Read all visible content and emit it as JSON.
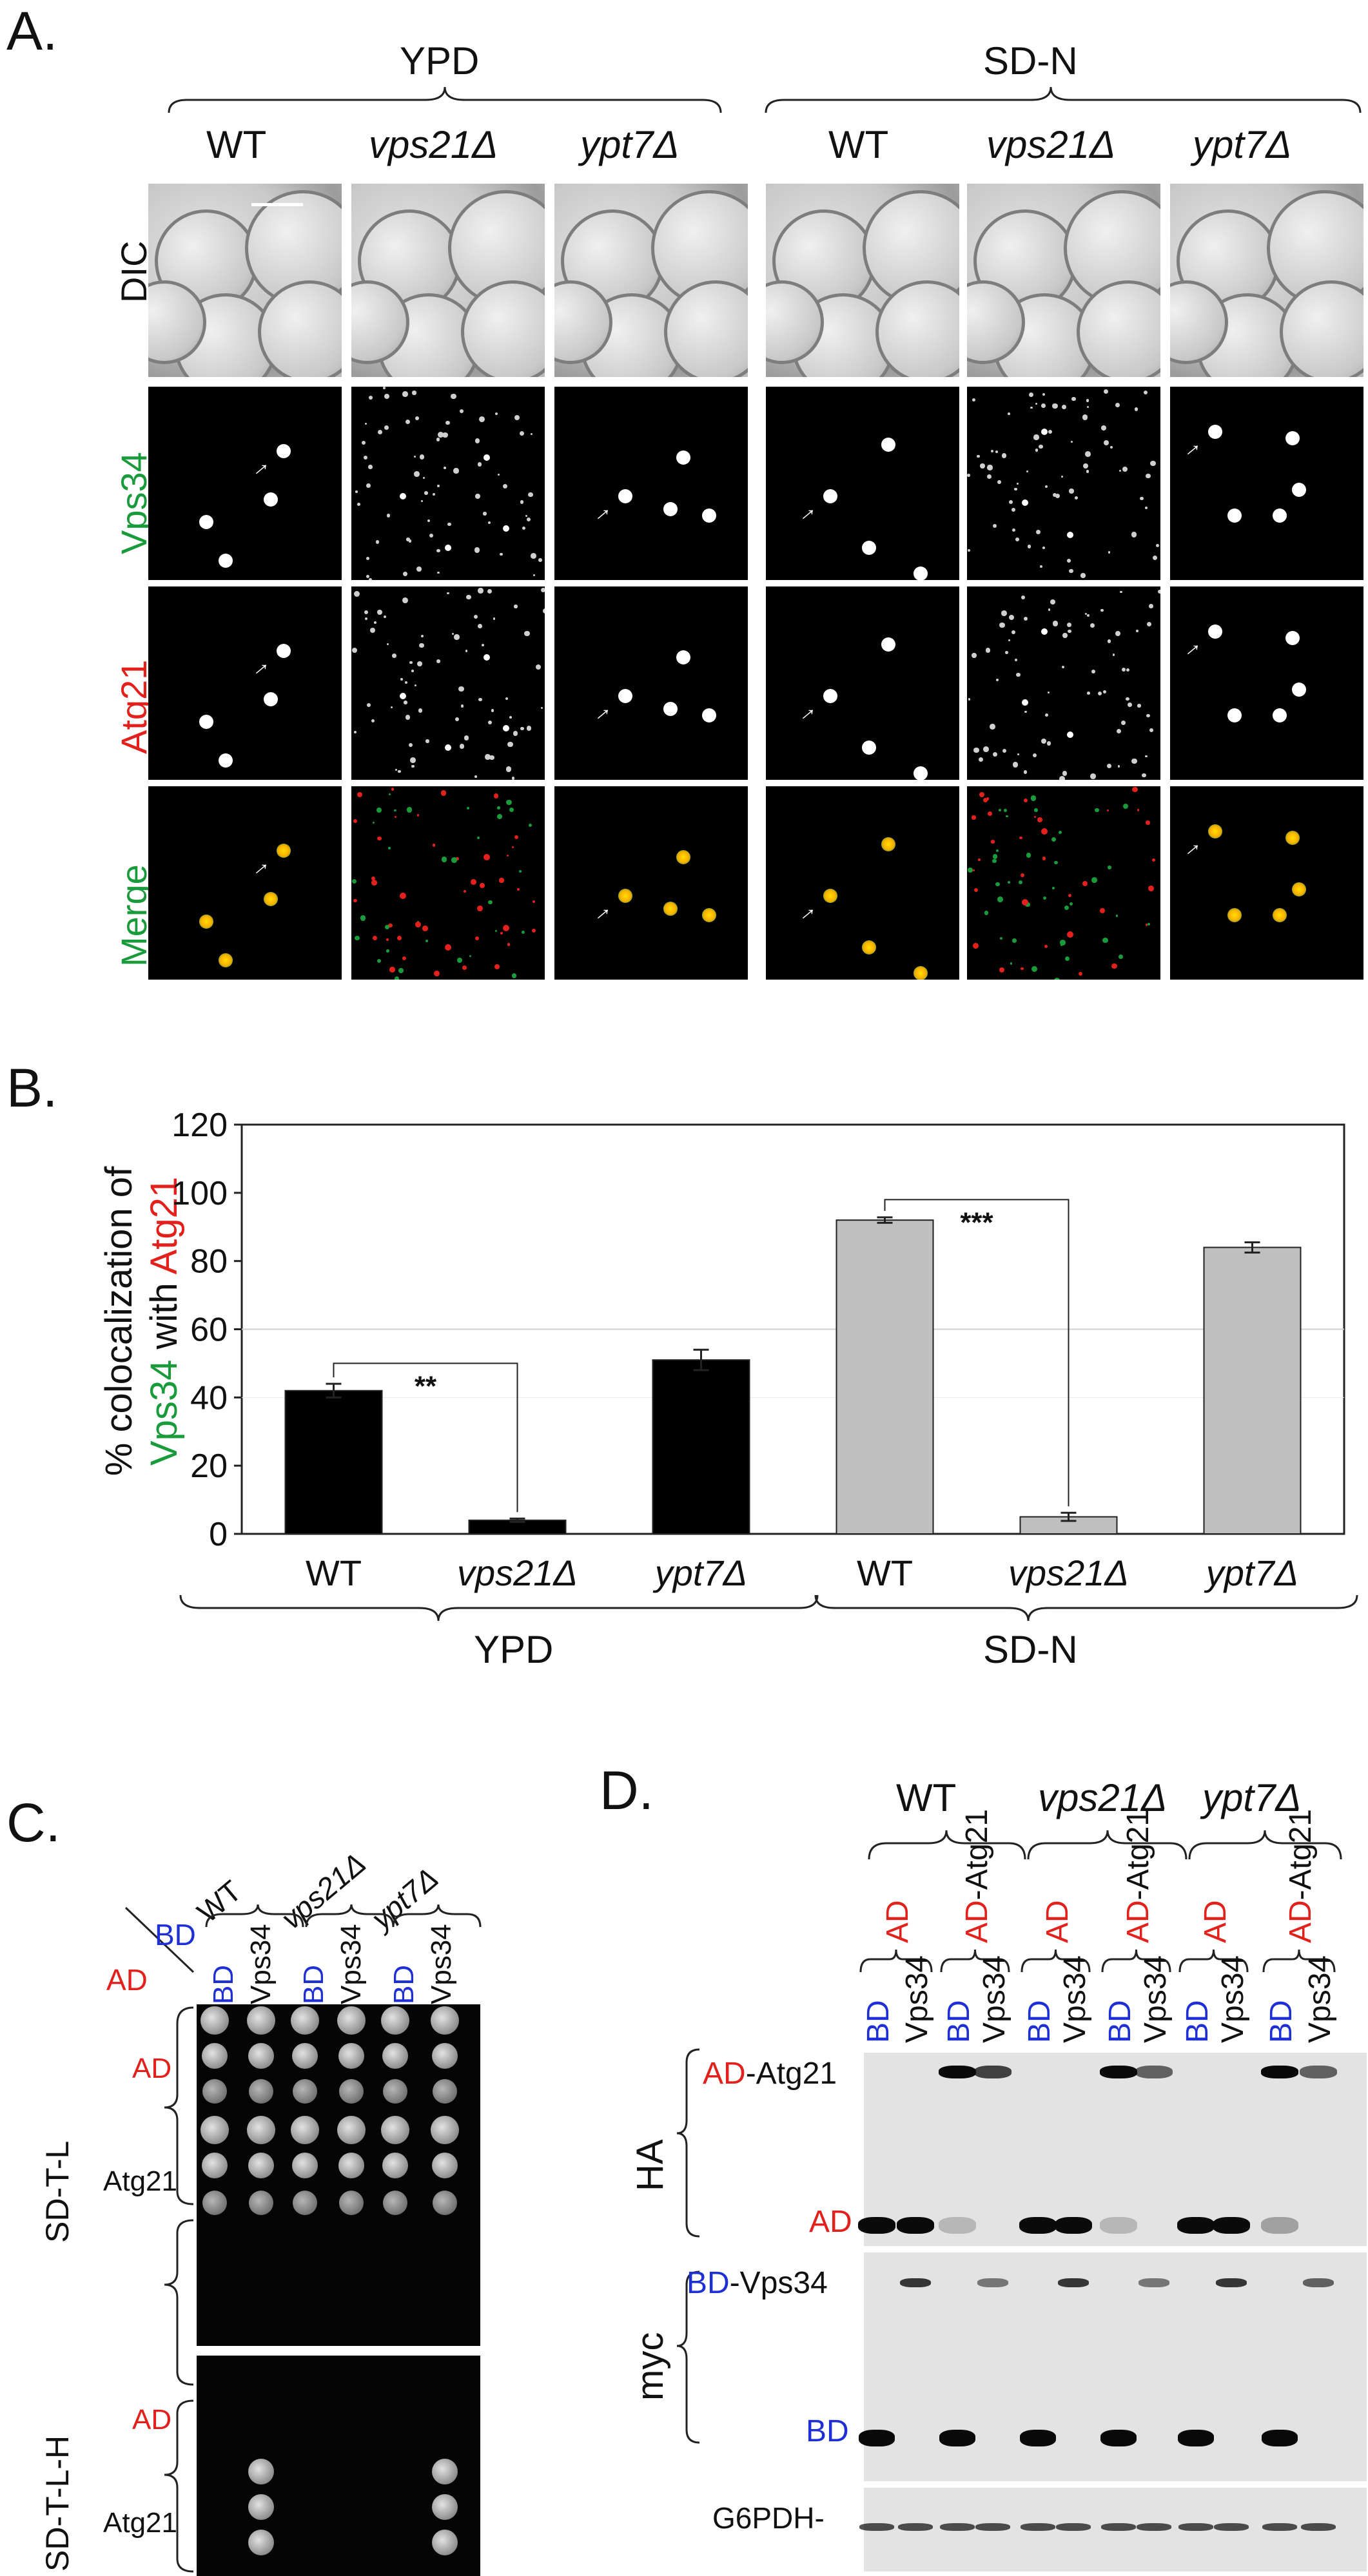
{
  "panelA": {
    "letter": "A.",
    "groups": [
      "YPD",
      "SD-N"
    ],
    "columns": [
      "WT",
      "vps21Δ",
      "ypt7Δ",
      "WT",
      "vps21Δ",
      "ypt7Δ"
    ],
    "rows": [
      "DIC",
      "Vps34",
      "Atg21",
      "Merge"
    ],
    "colors": {
      "green": "#1a9b3b",
      "red": "#e3211c",
      "blue": "#1f2fd6"
    }
  },
  "panelB": {
    "letter": "B.",
    "ylabel_part1": "% colocalization of",
    "ylabel_green": "Vps34",
    "ylabel_mid": " with ",
    "ylabel_red": "Atg21",
    "sig1": "**",
    "sig2": "***",
    "groups": [
      "YPD",
      "SD-N"
    ]
  },
  "chart_data": {
    "type": "bar",
    "categories": [
      "WT",
      "vps21Δ",
      "ypt7Δ",
      "WT",
      "vps21Δ",
      "ypt7Δ"
    ],
    "groups": [
      "YPD",
      "YPD",
      "YPD",
      "SD-N",
      "SD-N",
      "SD-N"
    ],
    "values": [
      42,
      4,
      51,
      92,
      5,
      84
    ],
    "errors": [
      2,
      0.5,
      3,
      0.8,
      1.2,
      1.5
    ],
    "colors": [
      "#000000",
      "#000000",
      "#000000",
      "#bfbfbf",
      "#bfbfbf",
      "#bfbfbf"
    ],
    "ylim": [
      0,
      120
    ],
    "yticks": [
      0,
      20,
      40,
      60,
      80,
      100,
      120
    ],
    "title": "",
    "xlabel": "",
    "ylabel": "% colocalization of Vps34 with Atg21"
  },
  "panelC": {
    "letter": "C.",
    "strains": [
      "WT",
      "vps21Δ",
      "ypt7Δ"
    ],
    "bd_header": "BD",
    "ad_header": "AD",
    "columns": [
      "BD",
      "Vps34",
      "BD",
      "Vps34",
      "BD",
      "Vps34"
    ],
    "media": [
      "SD-T-L",
      "SD-T-L-H"
    ],
    "row_labels": [
      "AD",
      "Atg21"
    ]
  },
  "panelD": {
    "letter": "D.",
    "strains": [
      "WT",
      "vps21Δ",
      "ypt7Δ"
    ],
    "ad_label": "AD",
    "ad_atg21_suffix": "-Atg21",
    "lanes_bd": [
      "BD",
      "Vps34",
      "BD",
      "Vps34",
      "BD",
      "Vps34",
      "BD",
      "Vps34",
      "BD",
      "Vps34",
      "BD",
      "Vps34"
    ],
    "ha_label": "HA",
    "myc_label": "myc",
    "band_ad_atg21_prefix": "AD",
    "band_ad_atg21_suffix": "-Atg21",
    "band_ad": "AD",
    "band_bd_prefix": "BD",
    "band_bd_suffix": "-Vps34",
    "band_bd": "BD",
    "loading": "G6PDH-"
  }
}
